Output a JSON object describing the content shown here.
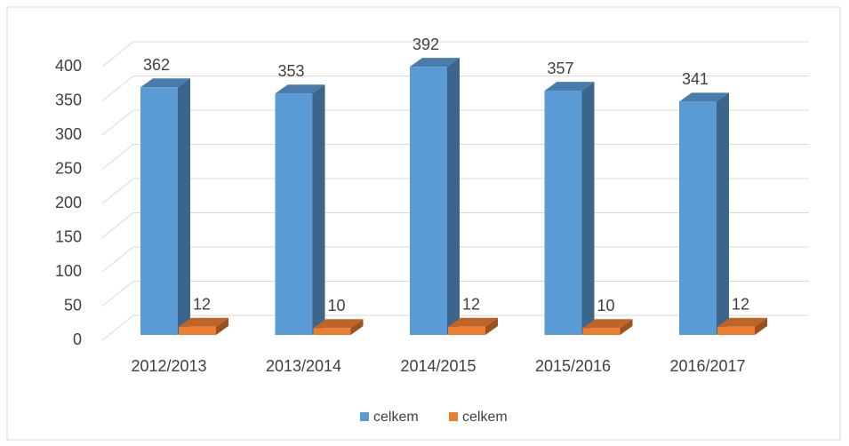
{
  "chart_data": {
    "type": "bar3d",
    "categories": [
      "2012/2013",
      "2013/2014",
      "2014/2015",
      "2015/2016",
      "2016/2017"
    ],
    "series": [
      {
        "name": "celkem",
        "color": "#5b9bd5",
        "values": [
          362,
          353,
          392,
          357,
          341
        ]
      },
      {
        "name": "celkem",
        "color": "#ed7d31",
        "values": [
          12,
          10,
          12,
          10,
          12
        ]
      }
    ],
    "ylim": [
      0,
      400
    ],
    "yticks": [
      0,
      50,
      100,
      150,
      200,
      250,
      300,
      350,
      400
    ],
    "grid": true,
    "legend": "bottom"
  }
}
